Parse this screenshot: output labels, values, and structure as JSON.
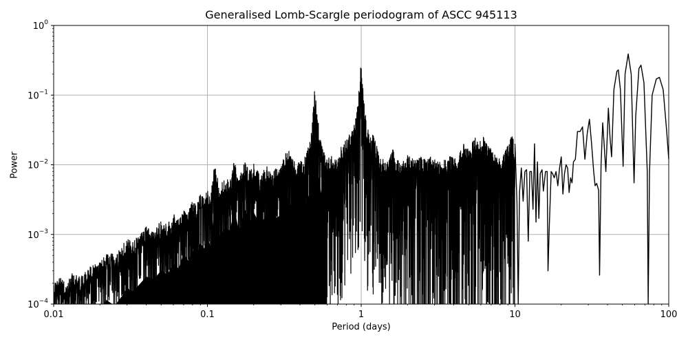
{
  "chart_data": {
    "type": "line",
    "title": "Generalised Lomb-Scargle periodogram of ASCC 945113",
    "xlabel": "Period (days)",
    "ylabel": "Power",
    "xscale": "log",
    "yscale": "log",
    "xlim": [
      0.01,
      100
    ],
    "ylim": [
      0.0001,
      1
    ],
    "grid": true,
    "legend": null,
    "line_color": "#000000",
    "grid_color": "#b0b0b0",
    "x_ticks": [
      {
        "value": 0.01,
        "label": "0.01"
      },
      {
        "value": 0.1,
        "label": "0.1"
      },
      {
        "value": 1,
        "label": "1"
      },
      {
        "value": 10,
        "label": "10"
      },
      {
        "value": 100,
        "label": "100"
      }
    ],
    "y_ticks": [
      {
        "value": 0.0001,
        "base": "10",
        "exp": "−4"
      },
      {
        "value": 0.001,
        "base": "10",
        "exp": "−3"
      },
      {
        "value": 0.01,
        "base": "10",
        "exp": "−2"
      },
      {
        "value": 0.1,
        "base": "10",
        "exp": "−1"
      },
      {
        "value": 1,
        "base": "10",
        "exp": "0"
      }
    ],
    "notable_peaks": [
      {
        "period": 0.5,
        "power": 0.14
      },
      {
        "period": 1.0,
        "power": 0.33
      },
      {
        "period": 47,
        "power": 0.23
      },
      {
        "period": 54.5,
        "power": 0.39
      },
      {
        "period": 66,
        "power": 0.27
      },
      {
        "period": 87,
        "power": 0.18
      }
    ],
    "dense_envelope": {
      "description": "Dense noisy spectrum region, upper envelope of local peaks (period, power)",
      "upper": [
        [
          0.01,
          0.00022
        ],
        [
          0.011,
          0.00025
        ],
        [
          0.012,
          0.0002
        ],
        [
          0.013,
          0.00028
        ],
        [
          0.015,
          0.00025
        ],
        [
          0.017,
          0.00035
        ],
        [
          0.02,
          0.0004
        ],
        [
          0.022,
          0.0006
        ],
        [
          0.025,
          0.0005
        ],
        [
          0.028,
          0.0007
        ],
        [
          0.03,
          0.0009
        ],
        [
          0.033,
          0.0008
        ],
        [
          0.036,
          0.001
        ],
        [
          0.04,
          0.0013
        ],
        [
          0.045,
          0.0012
        ],
        [
          0.05,
          0.0016
        ],
        [
          0.055,
          0.0014
        ],
        [
          0.06,
          0.002
        ],
        [
          0.065,
          0.0017
        ],
        [
          0.07,
          0.0028
        ],
        [
          0.075,
          0.0022
        ],
        [
          0.08,
          0.0031
        ],
        [
          0.085,
          0.0026
        ],
        [
          0.09,
          0.004
        ],
        [
          0.095,
          0.0033
        ],
        [
          0.1,
          0.0045
        ],
        [
          0.105,
          0.0035
        ],
        [
          0.11,
          0.011
        ],
        [
          0.12,
          0.005
        ],
        [
          0.13,
          0.0065
        ],
        [
          0.14,
          0.006
        ],
        [
          0.15,
          0.012
        ],
        [
          0.16,
          0.006
        ],
        [
          0.175,
          0.012
        ],
        [
          0.19,
          0.008
        ],
        [
          0.2,
          0.011
        ],
        [
          0.22,
          0.007
        ],
        [
          0.24,
          0.01
        ],
        [
          0.26,
          0.008
        ],
        [
          0.28,
          0.009
        ],
        [
          0.3,
          0.01
        ],
        [
          0.33,
          0.018
        ],
        [
          0.36,
          0.012
        ],
        [
          0.4,
          0.011
        ],
        [
          0.43,
          0.013
        ],
        [
          0.46,
          0.02
        ],
        [
          0.48,
          0.04
        ],
        [
          0.5,
          0.14
        ],
        [
          0.52,
          0.05
        ],
        [
          0.55,
          0.02
        ],
        [
          0.6,
          0.012
        ],
        [
          0.65,
          0.015
        ],
        [
          0.7,
          0.012
        ],
        [
          0.75,
          0.02
        ],
        [
          0.8,
          0.025
        ],
        [
          0.85,
          0.03
        ],
        [
          0.9,
          0.045
        ],
        [
          0.95,
          0.08
        ],
        [
          1.0,
          0.33
        ],
        [
          1.03,
          0.12
        ],
        [
          1.08,
          0.04
        ],
        [
          1.15,
          0.025
        ],
        [
          1.2,
          0.03
        ],
        [
          1.3,
          0.015
        ],
        [
          1.4,
          0.012
        ],
        [
          1.5,
          0.011
        ],
        [
          1.6,
          0.017
        ],
        [
          1.7,
          0.014
        ],
        [
          1.8,
          0.01
        ],
        [
          2.0,
          0.015
        ],
        [
          2.2,
          0.012
        ],
        [
          2.4,
          0.014
        ],
        [
          2.6,
          0.013
        ],
        [
          2.8,
          0.013
        ],
        [
          3.0,
          0.014
        ],
        [
          3.3,
          0.011
        ],
        [
          3.6,
          0.013
        ],
        [
          4.0,
          0.014
        ],
        [
          4.3,
          0.013
        ],
        [
          4.6,
          0.021
        ],
        [
          5.0,
          0.018
        ],
        [
          5.5,
          0.025
        ],
        [
          6.0,
          0.022
        ],
        [
          6.3,
          0.03
        ],
        [
          6.6,
          0.02
        ],
        [
          7.0,
          0.017
        ],
        [
          7.5,
          0.014
        ],
        [
          8.0,
          0.012
        ],
        [
          8.5,
          0.016
        ],
        [
          9.0,
          0.02
        ],
        [
          9.5,
          0.027
        ],
        [
          10.0,
          0.02
        ]
      ],
      "lower": 0.0001
    },
    "smooth_curve": [
      [
        10.0,
        0.02
      ],
      [
        10.3,
        0.003
      ],
      [
        10.5,
        0.0001
      ],
      [
        10.7,
        0.004
      ],
      [
        11.0,
        0.009
      ],
      [
        11.3,
        0.003
      ],
      [
        11.6,
        0.008
      ],
      [
        11.9,
        0.0085
      ],
      [
        12.2,
        0.0008
      ],
      [
        12.5,
        0.008
      ],
      [
        12.8,
        0.008
      ],
      [
        13.1,
        0.0023
      ],
      [
        13.4,
        0.02
      ],
      [
        13.7,
        0.0015
      ],
      [
        14.0,
        0.011
      ],
      [
        14.3,
        0.0017
      ],
      [
        14.6,
        0.0075
      ],
      [
        15.0,
        0.0085
      ],
      [
        15.3,
        0.0042
      ],
      [
        15.8,
        0.008
      ],
      [
        16.2,
        0.008
      ],
      [
        16.4,
        0.0003
      ],
      [
        16.7,
        0.0012
      ],
      [
        17.2,
        0.008
      ],
      [
        17.6,
        0.0074
      ],
      [
        18.0,
        0.0065
      ],
      [
        18.5,
        0.008
      ],
      [
        19.0,
        0.005
      ],
      [
        19.5,
        0.009
      ],
      [
        20.0,
        0.013
      ],
      [
        20.5,
        0.0038
      ],
      [
        21.0,
        0.0075
      ],
      [
        21.5,
        0.01
      ],
      [
        22.0,
        0.009
      ],
      [
        22.5,
        0.004
      ],
      [
        23.0,
        0.0065
      ],
      [
        23.5,
        0.0055
      ],
      [
        24.0,
        0.011
      ],
      [
        24.7,
        0.012
      ],
      [
        25.5,
        0.03
      ],
      [
        26.5,
        0.03
      ],
      [
        27.5,
        0.035
      ],
      [
        28.5,
        0.012
      ],
      [
        29.5,
        0.028
      ],
      [
        30.5,
        0.045
      ],
      [
        31.5,
        0.02
      ],
      [
        32.5,
        0.008
      ],
      [
        33.2,
        0.005
      ],
      [
        34.0,
        0.0054
      ],
      [
        35.0,
        0.0043
      ],
      [
        35.5,
        0.00026
      ],
      [
        36.3,
        0.01
      ],
      [
        37.2,
        0.04
      ],
      [
        38.0,
        0.02
      ],
      [
        39.0,
        0.008
      ],
      [
        40.5,
        0.065
      ],
      [
        41.5,
        0.025
      ],
      [
        42.5,
        0.013
      ],
      [
        44.0,
        0.12
      ],
      [
        46.0,
        0.22
      ],
      [
        47.0,
        0.23
      ],
      [
        48.5,
        0.12
      ],
      [
        50.5,
        0.0095
      ],
      [
        52.0,
        0.2
      ],
      [
        54.5,
        0.39
      ],
      [
        57.0,
        0.2
      ],
      [
        59.5,
        0.0055
      ],
      [
        61.0,
        0.05
      ],
      [
        64.0,
        0.24
      ],
      [
        66.0,
        0.27
      ],
      [
        69.0,
        0.15
      ],
      [
        72.5,
        0.008
      ],
      [
        73.5,
        0.0001
      ],
      [
        75.0,
        0.008
      ],
      [
        78.0,
        0.1
      ],
      [
        83.0,
        0.17
      ],
      [
        87.0,
        0.18
      ],
      [
        92.0,
        0.12
      ],
      [
        97.0,
        0.03
      ],
      [
        100.0,
        0.012
      ]
    ]
  }
}
